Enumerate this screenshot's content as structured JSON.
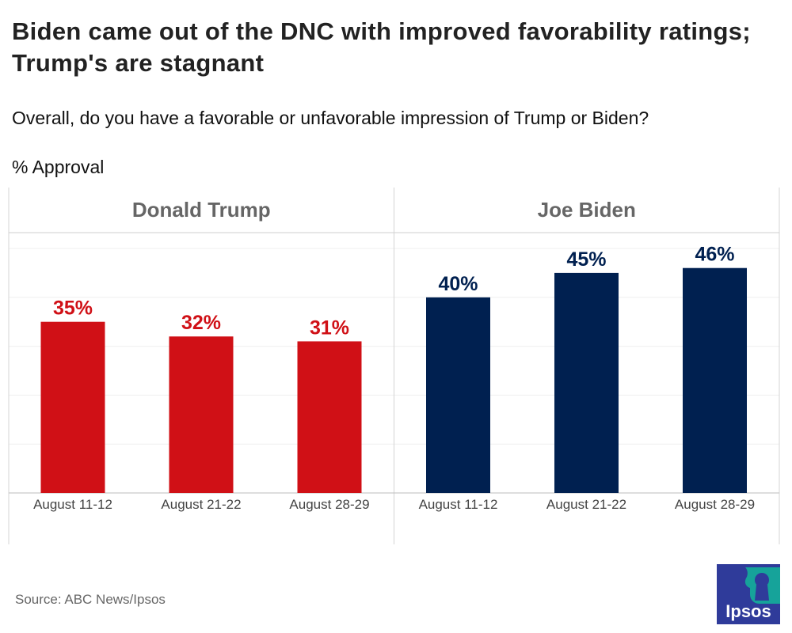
{
  "title": "Biden came out of the DNC with improved favorability ratings; Trump's are stagnant",
  "subtitle": "Overall, do you have a favorable or unfavorable impression of Trump or Biden?",
  "units_label": "% Approval",
  "source": "Source: ABC News/Ipsos",
  "logo_text": "Ipsos",
  "colors": {
    "trump": "#d01016",
    "biden": "#002050",
    "logo_blue": "#2f3b9a",
    "logo_teal": "#16a39a"
  },
  "chart_data": {
    "type": "bar",
    "ylabel": "% Approval",
    "ylim": [
      0,
      50
    ],
    "grid": true,
    "panels": [
      {
        "name": "Donald Trump",
        "color": "#d01016",
        "categories": [
          "August 11-12",
          "August 21-22",
          "August 28-29"
        ],
        "values": [
          35,
          32,
          31
        ],
        "labels": [
          "35%",
          "32%",
          "31%"
        ]
      },
      {
        "name": "Joe Biden",
        "color": "#002050",
        "categories": [
          "August 11-12",
          "August 21-22",
          "August 28-29"
        ],
        "values": [
          40,
          45,
          46
        ],
        "labels": [
          "40%",
          "45%",
          "46%"
        ]
      }
    ]
  }
}
